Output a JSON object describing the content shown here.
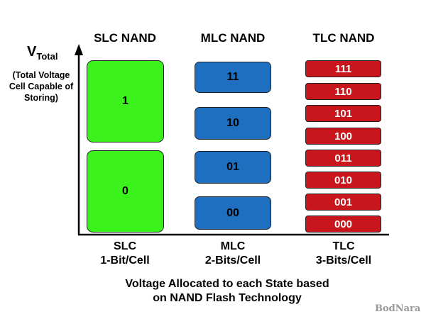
{
  "headers": {
    "slc": "SLC NAND",
    "mlc": "MLC NAND",
    "tlc": "TLC NAND"
  },
  "y_axis": {
    "label_main": "V",
    "label_sub": "Total",
    "description": "(Total Voltage Cell Capable of Storing)"
  },
  "slc_states": [
    "1",
    "0"
  ],
  "mlc_states": [
    "11",
    "10",
    "01",
    "00"
  ],
  "tlc_states": [
    "111",
    "110",
    "101",
    "100",
    "011",
    "010",
    "001",
    "000"
  ],
  "bottom_labels": {
    "slc": {
      "line1": "SLC",
      "line2": "1-Bit/Cell"
    },
    "mlc": {
      "line1": "MLC",
      "line2": "2-Bits/Cell"
    },
    "tlc": {
      "line1": "TLC",
      "line2": "3-Bits/Cell"
    }
  },
  "caption": {
    "line1": "Voltage Allocated to each State based",
    "line2": "on NAND Flash Technology"
  },
  "watermark": "BodNara",
  "colors": {
    "slc": "#3cf21c",
    "mlc": "#1f6fc1",
    "tlc": "#c8161c"
  }
}
